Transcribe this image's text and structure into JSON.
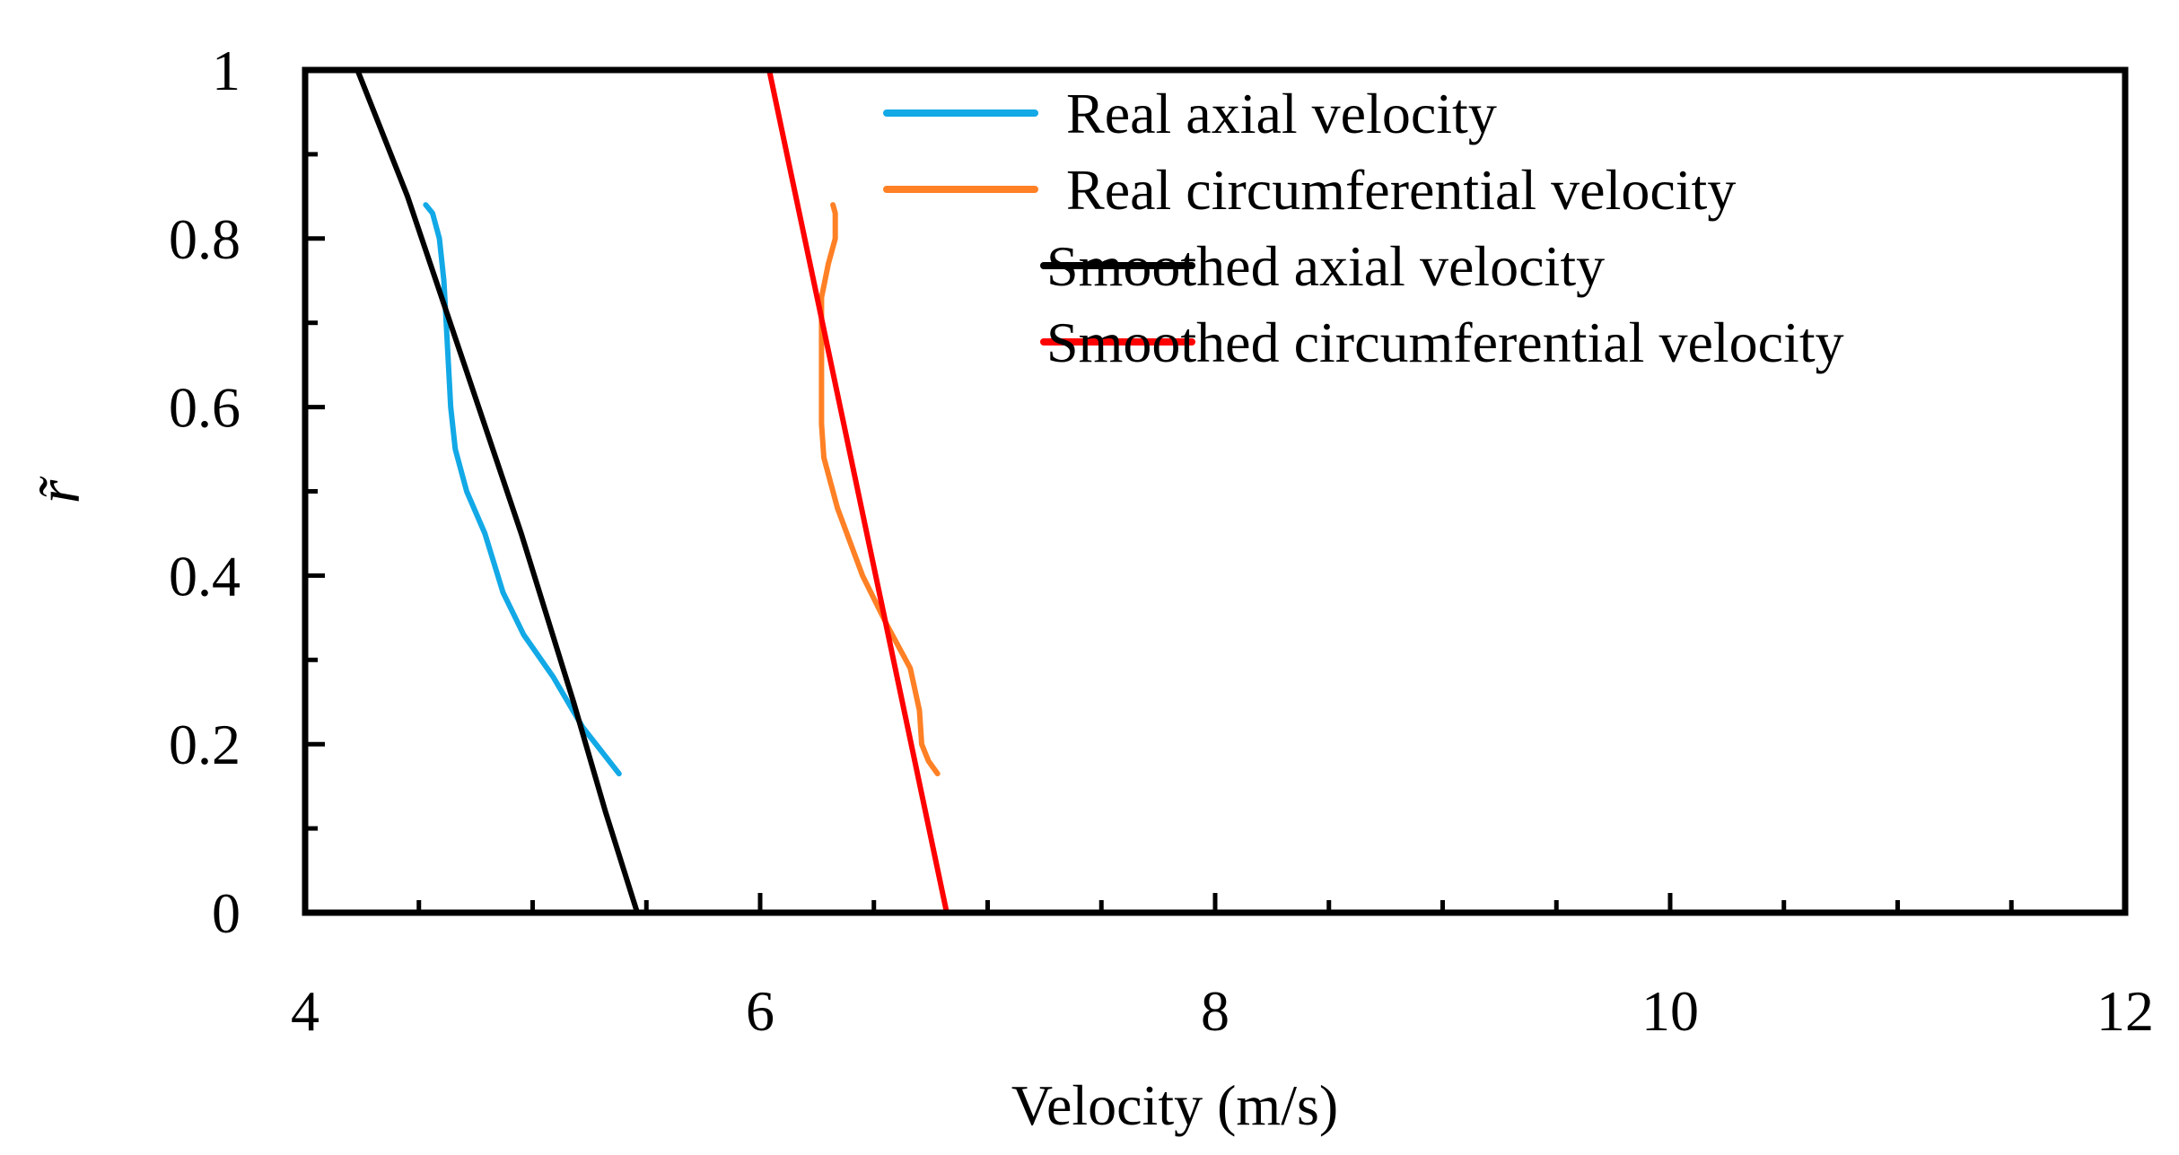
{
  "chart_data": {
    "type": "line",
    "title": "",
    "xlabel": "Velocity (m/s)",
    "ylabel": "r̃",
    "xlim": [
      4,
      12
    ],
    "ylim": [
      0,
      1
    ],
    "xticks": [
      4,
      6,
      8,
      10,
      12
    ],
    "xtick_labels": [
      "4",
      "6",
      "8",
      "10",
      "12"
    ],
    "yticks": [
      0,
      0.2,
      0.4,
      0.6,
      0.8,
      1
    ],
    "ytick_labels": [
      "0",
      "0.2",
      "0.4",
      "0.6",
      "0.8",
      "1"
    ],
    "grid": false,
    "legend_position": "top-right",
    "series": [
      {
        "name": "Real axial velocity",
        "color": "#12A9E6",
        "points": [
          [
            4.53,
            0.84
          ],
          [
            4.56,
            0.83
          ],
          [
            4.59,
            0.8
          ],
          [
            4.61,
            0.75
          ],
          [
            4.62,
            0.7
          ],
          [
            4.63,
            0.65
          ],
          [
            4.64,
            0.6
          ],
          [
            4.66,
            0.55
          ],
          [
            4.71,
            0.5
          ],
          [
            4.79,
            0.45
          ],
          [
            4.87,
            0.38
          ],
          [
            4.96,
            0.33
          ],
          [
            5.09,
            0.28
          ],
          [
            5.22,
            0.22
          ],
          [
            5.38,
            0.165
          ]
        ]
      },
      {
        "name": "Real circumferential velocity",
        "color": "#FF8025",
        "points": [
          [
            6.32,
            0.84
          ],
          [
            6.33,
            0.83
          ],
          [
            6.33,
            0.8
          ],
          [
            6.3,
            0.77
          ],
          [
            6.27,
            0.73
          ],
          [
            6.27,
            0.68
          ],
          [
            6.27,
            0.62
          ],
          [
            6.27,
            0.58
          ],
          [
            6.28,
            0.54
          ],
          [
            6.34,
            0.48
          ],
          [
            6.45,
            0.4
          ],
          [
            6.56,
            0.34
          ],
          [
            6.66,
            0.29
          ],
          [
            6.7,
            0.24
          ],
          [
            6.71,
            0.2
          ],
          [
            6.74,
            0.18
          ],
          [
            6.78,
            0.165
          ]
        ]
      },
      {
        "name": "Smoothed axial velocity",
        "color": "#000000",
        "points": [
          [
            4.23,
            1
          ],
          [
            4.45,
            0.85
          ],
          [
            4.7,
            0.65
          ],
          [
            4.95,
            0.45
          ],
          [
            5.18,
            0.25
          ],
          [
            5.32,
            0.12
          ],
          [
            5.46,
            0
          ]
        ]
      },
      {
        "name": "Smoothed circumferential velocity",
        "color": "#FF0000",
        "points": [
          [
            6.04,
            1
          ],
          [
            6.82,
            0
          ]
        ]
      }
    ]
  }
}
